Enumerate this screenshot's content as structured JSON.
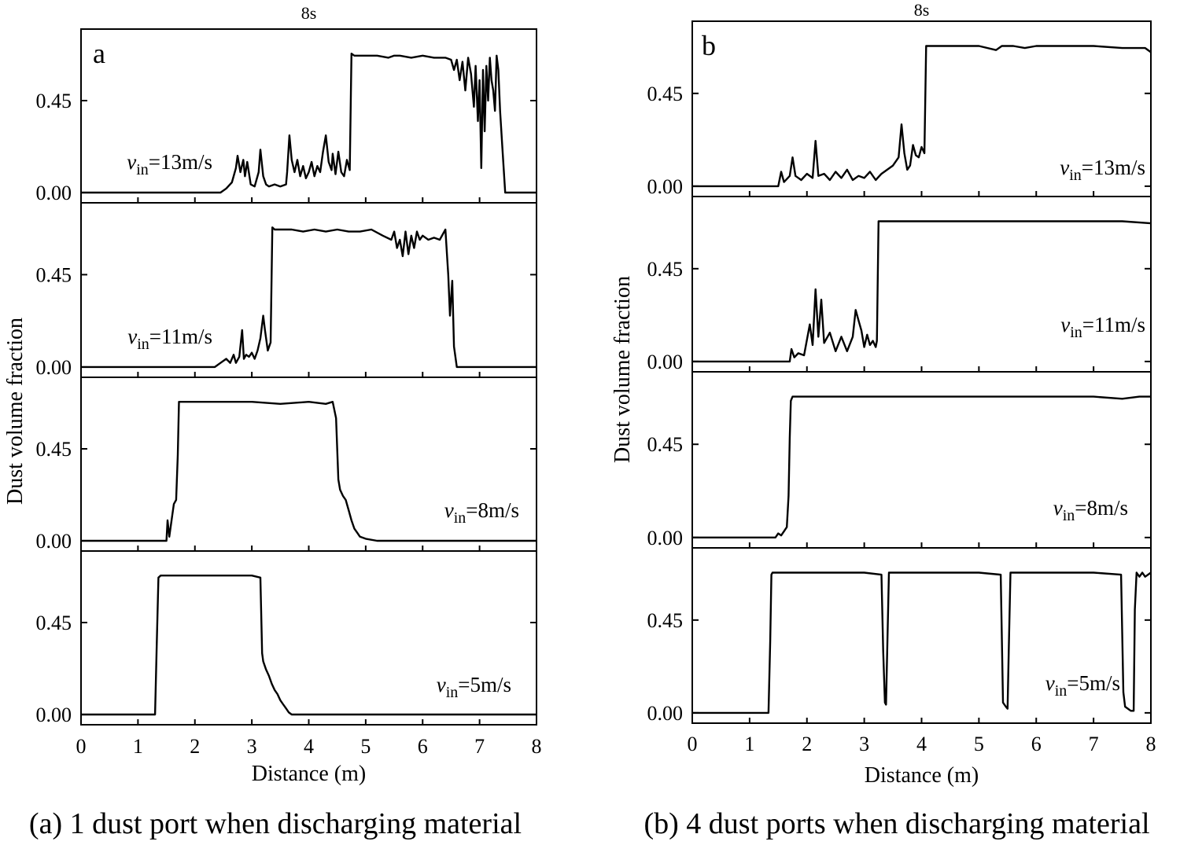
{
  "chart_data": [
    {
      "type": "line",
      "panel_label": "a",
      "title": "8s",
      "caption": "(a) 1 dust port when discharging material",
      "xlabel": "Distance (m)",
      "ylabel": "Dust volume fraction",
      "xlim": [
        0,
        8
      ],
      "ylim": [
        -0.05,
        0.8
      ],
      "x_ticks": [
        "0",
        "1",
        "2",
        "3",
        "4",
        "5",
        "6",
        "7",
        "8"
      ],
      "y_ticks": [
        "0.00",
        "0.45"
      ],
      "series": [
        {
          "name_v": "v",
          "name_sub": "in",
          "name_rest": "=13m/s",
          "x": [
            0,
            2.45,
            2.55,
            2.65,
            2.72,
            2.75,
            2.8,
            2.85,
            2.88,
            2.92,
            2.98,
            3.05,
            3.12,
            3.15,
            3.2,
            3.25,
            3.3,
            3.4,
            3.5,
            3.6,
            3.62,
            3.66,
            3.7,
            3.75,
            3.8,
            3.85,
            3.9,
            3.95,
            4.0,
            4.05,
            4.1,
            4.15,
            4.2,
            4.25,
            4.3,
            4.35,
            4.4,
            4.42,
            4.47,
            4.52,
            4.57,
            4.62,
            4.67,
            4.72,
            4.75,
            4.8,
            5.0,
            5.2,
            5.4,
            5.5,
            5.6,
            5.8,
            6.0,
            6.2,
            6.4,
            6.5,
            6.55,
            6.6,
            6.65,
            6.7,
            6.75,
            6.8,
            6.85,
            6.9,
            6.93,
            6.97,
            7.0,
            7.03,
            7.06,
            7.09,
            7.12,
            7.15,
            7.18,
            7.21,
            7.24,
            7.27,
            7.3,
            7.33,
            7.36,
            7.4,
            7.45,
            7.6,
            8
          ],
          "y": [
            0,
            0,
            0.02,
            0.05,
            0.12,
            0.18,
            0.1,
            0.16,
            0.08,
            0.15,
            0.04,
            0.03,
            0.1,
            0.21,
            0.08,
            0.04,
            0.03,
            0.04,
            0.03,
            0.04,
            0.1,
            0.28,
            0.16,
            0.1,
            0.16,
            0.08,
            0.13,
            0.07,
            0.1,
            0.15,
            0.08,
            0.13,
            0.1,
            0.2,
            0.28,
            0.15,
            0.11,
            0.19,
            0.09,
            0.2,
            0.1,
            0.08,
            0.16,
            0.11,
            0.68,
            0.67,
            0.67,
            0.67,
            0.66,
            0.67,
            0.67,
            0.66,
            0.67,
            0.66,
            0.66,
            0.65,
            0.6,
            0.65,
            0.55,
            0.64,
            0.5,
            0.66,
            0.58,
            0.42,
            0.62,
            0.35,
            0.55,
            0.12,
            0.6,
            0.3,
            0.62,
            0.45,
            0.66,
            0.55,
            0.5,
            0.4,
            0.67,
            0.6,
            0.4,
            0.22,
            0,
            0,
            0
          ]
        },
        {
          "name_v": "v",
          "name_sub": "in",
          "name_rest": "=11m/s",
          "x": [
            0,
            2.35,
            2.45,
            2.55,
            2.62,
            2.68,
            2.72,
            2.78,
            2.83,
            2.86,
            2.9,
            2.95,
            3.0,
            3.05,
            3.1,
            3.15,
            3.2,
            3.23,
            3.28,
            3.33,
            3.36,
            3.4,
            3.5,
            3.7,
            3.9,
            4.1,
            4.3,
            4.5,
            4.7,
            4.9,
            5.1,
            5.3,
            5.45,
            5.5,
            5.55,
            5.6,
            5.65,
            5.7,
            5.75,
            5.8,
            5.85,
            5.9,
            5.95,
            6.0,
            6.1,
            6.2,
            6.3,
            6.4,
            6.45,
            6.48,
            6.52,
            6.55,
            6.6,
            6.65,
            8
          ],
          "y": [
            0,
            0,
            0.02,
            0.04,
            0.02,
            0.06,
            0.02,
            0.05,
            0.18,
            0.04,
            0.06,
            0.05,
            0.07,
            0.04,
            0.08,
            0.14,
            0.25,
            0.18,
            0.08,
            0.12,
            0.68,
            0.67,
            0.67,
            0.67,
            0.66,
            0.67,
            0.66,
            0.67,
            0.66,
            0.66,
            0.67,
            0.64,
            0.62,
            0.66,
            0.58,
            0.62,
            0.54,
            0.66,
            0.55,
            0.64,
            0.58,
            0.66,
            0.62,
            0.64,
            0.62,
            0.63,
            0.62,
            0.67,
            0.45,
            0.25,
            0.42,
            0.1,
            0,
            0,
            0
          ]
        },
        {
          "name_v": "v",
          "name_sub": "in",
          "name_rest": "=8m/s",
          "x": [
            0,
            1.5,
            1.52,
            1.55,
            1.6,
            1.63,
            1.67,
            1.7,
            1.72,
            1.8,
            2.0,
            2.5,
            3.0,
            3.5,
            4.0,
            4.3,
            4.42,
            4.48,
            4.52,
            4.55,
            4.6,
            4.65,
            4.7,
            4.75,
            4.8,
            4.85,
            4.9,
            5.0,
            5.2,
            5.5,
            8
          ],
          "y": [
            0,
            0,
            0.1,
            0.02,
            0.12,
            0.18,
            0.2,
            0.42,
            0.68,
            0.68,
            0.68,
            0.68,
            0.68,
            0.67,
            0.68,
            0.67,
            0.68,
            0.6,
            0.3,
            0.25,
            0.22,
            0.2,
            0.15,
            0.1,
            0.06,
            0.04,
            0.02,
            0.01,
            0,
            0,
            0
          ]
        },
        {
          "name_v": "v",
          "name_sub": "in",
          "name_rest": "=5m/s",
          "x": [
            0,
            1.3,
            1.33,
            1.36,
            1.4,
            2.0,
            2.5,
            3.0,
            3.15,
            3.18,
            3.2,
            3.25,
            3.3,
            3.35,
            3.4,
            3.45,
            3.5,
            3.55,
            3.6,
            3.65,
            3.7,
            8
          ],
          "y": [
            0,
            0,
            0.35,
            0.67,
            0.68,
            0.68,
            0.68,
            0.68,
            0.67,
            0.3,
            0.26,
            0.22,
            0.19,
            0.15,
            0.12,
            0.1,
            0.07,
            0.05,
            0.03,
            0.01,
            0,
            0
          ]
        }
      ]
    },
    {
      "type": "line",
      "panel_label": "b",
      "title": "8s",
      "caption": "(b) 4 dust ports when discharging material",
      "xlabel": "Distance (m)",
      "ylabel": "Dust volume fraction",
      "xlim": [
        0,
        8
      ],
      "ylim": [
        -0.05,
        0.8
      ],
      "x_ticks": [
        "0",
        "1",
        "2",
        "3",
        "4",
        "5",
        "6",
        "7",
        "8"
      ],
      "y_ticks": [
        "0.00",
        "0.45"
      ],
      "series": [
        {
          "name_v": "v",
          "name_sub": "in",
          "name_rest": "=13m/s",
          "x": [
            0,
            1.5,
            1.55,
            1.6,
            1.7,
            1.75,
            1.8,
            1.9,
            2.0,
            2.1,
            2.15,
            2.2,
            2.3,
            2.4,
            2.5,
            2.6,
            2.7,
            2.8,
            2.9,
            3.0,
            3.1,
            3.2,
            3.3,
            3.4,
            3.5,
            3.6,
            3.65,
            3.7,
            3.75,
            3.8,
            3.85,
            3.9,
            3.95,
            4.0,
            4.05,
            4.08,
            4.1,
            4.3,
            4.6,
            5.0,
            5.3,
            5.4,
            5.6,
            5.8,
            6.0,
            6.5,
            7.0,
            7.5,
            7.9,
            8
          ],
          "y": [
            0,
            0,
            0.07,
            0.02,
            0.05,
            0.14,
            0.05,
            0.03,
            0.06,
            0.04,
            0.22,
            0.05,
            0.06,
            0.03,
            0.07,
            0.04,
            0.08,
            0.03,
            0.05,
            0.04,
            0.07,
            0.03,
            0.06,
            0.08,
            0.1,
            0.14,
            0.3,
            0.16,
            0.08,
            0.1,
            0.2,
            0.15,
            0.14,
            0.19,
            0.16,
            0.68,
            0.68,
            0.68,
            0.68,
            0.68,
            0.66,
            0.68,
            0.68,
            0.67,
            0.68,
            0.68,
            0.68,
            0.67,
            0.67,
            0.65
          ]
        },
        {
          "name_v": "v",
          "name_sub": "in",
          "name_rest": "=11m/s",
          "x": [
            0,
            1.7,
            1.73,
            1.78,
            1.85,
            1.95,
            2.05,
            2.1,
            2.15,
            2.2,
            2.25,
            2.3,
            2.4,
            2.5,
            2.6,
            2.7,
            2.8,
            2.85,
            2.9,
            2.95,
            3.0,
            3.05,
            3.1,
            3.15,
            3.2,
            3.22,
            3.25,
            3.5,
            4.0,
            4.5,
            5.0,
            5.5,
            6.0,
            6.5,
            7.0,
            7.5,
            8
          ],
          "y": [
            0,
            0,
            0.06,
            0.02,
            0.04,
            0.03,
            0.18,
            0.08,
            0.35,
            0.12,
            0.3,
            0.09,
            0.14,
            0.05,
            0.12,
            0.05,
            0.12,
            0.25,
            0.2,
            0.15,
            0.07,
            0.13,
            0.08,
            0.1,
            0.07,
            0.1,
            0.68,
            0.68,
            0.68,
            0.68,
            0.68,
            0.68,
            0.68,
            0.68,
            0.68,
            0.68,
            0.67
          ]
        },
        {
          "name_v": "v",
          "name_sub": "in",
          "name_rest": "=8m/s",
          "x": [
            0,
            1.45,
            1.5,
            1.55,
            1.6,
            1.65,
            1.68,
            1.7,
            1.72,
            1.75,
            2.0,
            3.0,
            4.0,
            5.0,
            6.0,
            7.0,
            7.5,
            7.8,
            8
          ],
          "y": [
            0,
            0,
            0.02,
            0.01,
            0.03,
            0.05,
            0.2,
            0.48,
            0.66,
            0.68,
            0.68,
            0.68,
            0.68,
            0.68,
            0.68,
            0.68,
            0.67,
            0.68,
            0.68
          ]
        },
        {
          "name_v": "v",
          "name_sub": "in",
          "name_rest": "=5m/s",
          "x": [
            0,
            1.33,
            1.36,
            1.38,
            1.4,
            2.0,
            2.5,
            3.0,
            3.3,
            3.33,
            3.36,
            3.38,
            3.4,
            3.43,
            3.5,
            4.0,
            4.5,
            5.0,
            5.38,
            5.42,
            5.47,
            5.5,
            5.52,
            5.55,
            6.0,
            6.5,
            7.0,
            7.48,
            7.52,
            7.55,
            7.6,
            7.65,
            7.7,
            7.72,
            7.75,
            7.8,
            7.85,
            7.9,
            8
          ],
          "y": [
            0,
            0,
            0.35,
            0.67,
            0.68,
            0.68,
            0.68,
            0.68,
            0.67,
            0.3,
            0.05,
            0.04,
            0.3,
            0.68,
            0.68,
            0.68,
            0.68,
            0.68,
            0.67,
            0.05,
            0.03,
            0.02,
            0.3,
            0.68,
            0.68,
            0.68,
            0.68,
            0.67,
            0.1,
            0.03,
            0.02,
            0.01,
            0.01,
            0.5,
            0.68,
            0.66,
            0.68,
            0.66,
            0.68
          ]
        }
      ]
    }
  ]
}
